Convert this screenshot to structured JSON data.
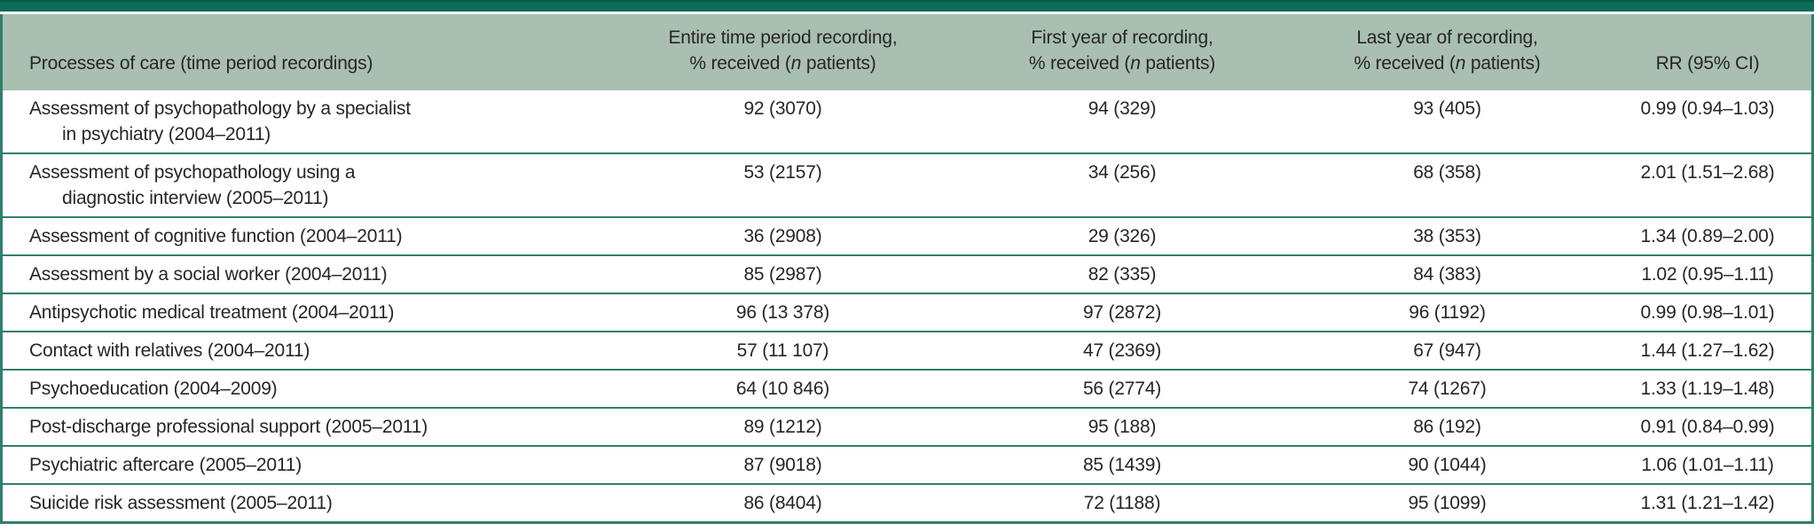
{
  "colors": {
    "top_bar": "#0d6d5a",
    "header_background": "#a9bfb2",
    "rule_lines": "#2f7f6c",
    "text": "#262626"
  },
  "table": {
    "columns": [
      {
        "title": "Processes of care (time period recordings)"
      },
      {
        "line1": "Entire time period recording,",
        "line2_pre": "% received (",
        "line2_italic": "n",
        "line2_post": " patients)"
      },
      {
        "line1": "First year of recording,",
        "line2_pre": "% received (",
        "line2_italic": "n",
        "line2_post": " patients)"
      },
      {
        "line1": "Last year of recording,",
        "line2_pre": "% received (",
        "line2_italic": "n",
        "line2_post": " patients)"
      },
      {
        "title": "RR (95% CI)"
      }
    ],
    "rows": [
      {
        "process_line1": "Assessment of psychopathology by a specialist",
        "process_line2": "in psychiatry (2004–2011)",
        "entire": "92 (3070)",
        "first": "94 (329)",
        "last": "93 (405)",
        "rr": "0.99 (0.94–1.03)"
      },
      {
        "process_line1": "Assessment of psychopathology using a",
        "process_line2": "diagnostic interview (2005–2011)",
        "entire": "53 (2157)",
        "first": "34 (256)",
        "last": "68 (358)",
        "rr": "2.01 (1.51–2.68)"
      },
      {
        "process_line1": "Assessment of cognitive function (2004–2011)",
        "process_line2": "",
        "entire": "36 (2908)",
        "first": "29 (326)",
        "last": "38 (353)",
        "rr": "1.34 (0.89–2.00)"
      },
      {
        "process_line1": "Assessment by a social worker (2004–2011)",
        "process_line2": "",
        "entire": "85 (2987)",
        "first": "82 (335)",
        "last": "84 (383)",
        "rr": "1.02 (0.95–1.11)"
      },
      {
        "process_line1": "Antipsychotic medical treatment (2004–2011)",
        "process_line2": "",
        "entire": "96 (13 378)",
        "first": "97 (2872)",
        "last": "96 (1192)",
        "rr": "0.99 (0.98–1.01)"
      },
      {
        "process_line1": "Contact with relatives (2004–2011)",
        "process_line2": "",
        "entire": "57 (11 107)",
        "first": "47 (2369)",
        "last": "67 (947)",
        "rr": "1.44 (1.27–1.62)"
      },
      {
        "process_line1": "Psychoeducation (2004–2009)",
        "process_line2": "",
        "entire": "64 (10 846)",
        "first": "56 (2774)",
        "last": "74 (1267)",
        "rr": "1.33 (1.19–1.48)"
      },
      {
        "process_line1": "Post-discharge professional support (2005–2011)",
        "process_line2": "",
        "entire": "89 (1212)",
        "first": "95 (188)",
        "last": "86 (192)",
        "rr": "0.91 (0.84–0.99)"
      },
      {
        "process_line1": "Psychiatric aftercare (2005–2011)",
        "process_line2": "",
        "entire": "87 (9018)",
        "first": "85 (1439)",
        "last": "90 (1044)",
        "rr": "1.06 (1.01–1.11)"
      },
      {
        "process_line1": "Suicide risk assessment (2005–2011)",
        "process_line2": "",
        "entire": "86 (8404)",
        "first": "72 (1188)",
        "last": "95 (1099)",
        "rr": "1.31 (1.21–1.42)"
      }
    ]
  }
}
